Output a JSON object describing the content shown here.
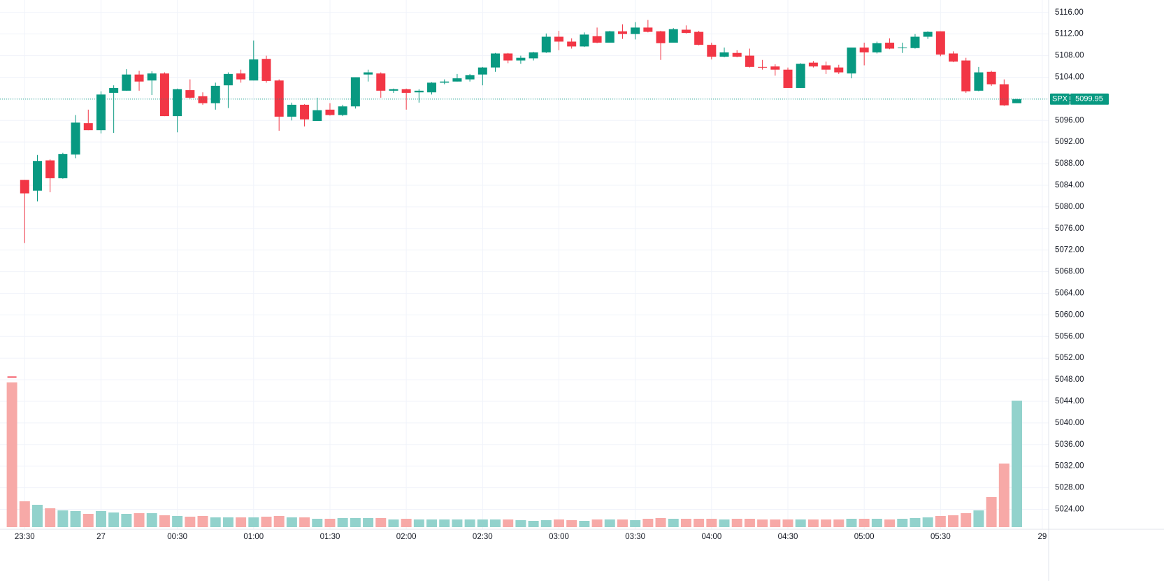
{
  "chart_data": {
    "type": "candlestick",
    "categories": [
      null,
      "23:30",
      null,
      null,
      null,
      null,
      null,
      "27",
      null,
      null,
      null,
      null,
      null,
      "00:30",
      null,
      null,
      null,
      null,
      null,
      "01:00",
      null,
      null,
      null,
      null,
      null,
      "01:30",
      null,
      null,
      null,
      null,
      null,
      "02:00",
      null,
      null,
      null,
      null,
      null,
      "02:30",
      null,
      null,
      null,
      null,
      null,
      "03:00",
      null,
      null,
      null,
      null,
      null,
      "03:30",
      null,
      null,
      null,
      null,
      null,
      "04:00",
      null,
      null,
      null,
      null,
      null,
      "04:30",
      null,
      null,
      null,
      null,
      null,
      "05:00",
      null,
      null,
      null,
      null,
      null,
      "05:30",
      null,
      null,
      null,
      null,
      null,
      null,
      null,
      "29"
    ],
    "open": [
      5048.6,
      5085.0,
      5083.0,
      5088.6,
      5085.3,
      5089.7,
      5095.5,
      5094.2,
      5101.1,
      5101.5,
      5104.5,
      5103.4,
      5104.7,
      5096.8,
      5101.6,
      5100.5,
      5099.2,
      5102.5,
      5104.7,
      5103.4,
      5107.4,
      5103.4,
      5096.7,
      5098.9,
      5095.9,
      5098.0,
      5097.0,
      5098.6,
      5104.5,
      5104.7,
      5101.5,
      5101.8,
      5101.2,
      5101.2,
      5103.0,
      5103.2,
      5103.6,
      5104.5,
      5105.8,
      5108.4,
      5107.1,
      5107.5,
      5108.6,
      5111.5,
      5110.6,
      5109.7,
      5111.6,
      5110.4,
      5112.5,
      5112.0,
      5113.2,
      5112.5,
      5110.4,
      5112.8,
      5112.4,
      5110.0,
      5107.8,
      5108.5,
      5108.0,
      5105.9,
      5106.0,
      5105.4,
      5102.0,
      5106.7,
      5106.2,
      5105.8,
      5104.7,
      5109.5,
      5108.6,
      5110.4,
      5109.4,
      5109.4,
      5111.5,
      5112.5,
      5108.4,
      5107.1,
      5101.5,
      5105.0,
      5102.7,
      5099.2,
      null,
      null
    ],
    "high": [
      5048.6,
      5085.0,
      5089.6,
      5088.8,
      5090.0,
      5097.0,
      5098.0,
      5101.4,
      5102.5,
      5105.5,
      5105.2,
      5105.1,
      5104.9,
      5101.9,
      5103.6,
      5101.2,
      5103.0,
      5104.9,
      5105.4,
      5110.8,
      5108.0,
      5103.6,
      5099.3,
      5099.0,
      5100.2,
      5099.2,
      5098.9,
      5104.0,
      5105.4,
      5104.9,
      5101.9,
      5101.9,
      5101.8,
      5103.1,
      5103.6,
      5104.6,
      5104.6,
      5105.9,
      5108.5,
      5108.5,
      5108.0,
      5108.7,
      5112.1,
      5112.6,
      5111.2,
      5112.3,
      5113.2,
      5112.6,
      5113.8,
      5114.2,
      5114.6,
      5112.6,
      5113.1,
      5113.6,
      5112.6,
      5110.4,
      5109.5,
      5109.0,
      5109.3,
      5107.2,
      5106.4,
      5105.8,
      5106.6,
      5107.0,
      5106.9,
      5106.3,
      5109.5,
      5110.4,
      5110.6,
      5111.2,
      5110.4,
      5112.0,
      5112.5,
      5112.5,
      5108.8,
      5107.6,
      5105.9,
      5105.2,
      5103.6,
      5100.0,
      null,
      null
    ],
    "low": [
      5048.4,
      5073.3,
      5081.0,
      5082.7,
      5085.2,
      5089.0,
      5094.2,
      5093.6,
      5093.7,
      5101.5,
      5101.5,
      5100.7,
      5096.8,
      5093.8,
      5100.0,
      5098.9,
      5098.0,
      5098.3,
      5103.0,
      5103.4,
      5103.0,
      5094.1,
      5096.0,
      5094.9,
      5095.9,
      5096.9,
      5096.8,
      5098.2,
      5103.2,
      5100.2,
      5101.1,
      5098.0,
      5099.3,
      5100.8,
      5102.7,
      5103.2,
      5103.2,
      5102.5,
      5105.0,
      5106.6,
      5106.5,
      5107.1,
      5108.5,
      5109.0,
      5109.3,
      5109.6,
      5110.3,
      5110.4,
      5111.1,
      5111.0,
      5112.3,
      5107.2,
      5110.4,
      5112.1,
      5109.9,
      5107.3,
      5107.7,
      5107.7,
      5105.8,
      5105.4,
      5104.3,
      5102.0,
      5102.0,
      5105.8,
      5104.6,
      5104.6,
      5103.8,
      5106.2,
      5108.4,
      5109.2,
      5108.5,
      5109.3,
      5111.1,
      5107.9,
      5106.8,
      5101.1,
      5101.4,
      5102.4,
      5098.7,
      5099.2,
      null,
      null
    ],
    "close": [
      5048.4,
      5082.5,
      5088.5,
      5085.3,
      5089.8,
      5095.6,
      5094.2,
      5100.8,
      5102.0,
      5104.5,
      5103.2,
      5104.7,
      5096.8,
      5101.8,
      5100.2,
      5099.2,
      5102.4,
      5104.6,
      5103.6,
      5107.3,
      5103.3,
      5096.7,
      5098.9,
      5096.2,
      5097.9,
      5097.0,
      5098.6,
      5104.0,
      5104.9,
      5101.5,
      5101.8,
      5101.1,
      5101.5,
      5103.0,
      5103.2,
      5103.8,
      5104.4,
      5105.8,
      5108.4,
      5107.1,
      5107.6,
      5108.6,
      5111.5,
      5110.6,
      5109.7,
      5111.9,
      5110.4,
      5112.5,
      5112.0,
      5113.2,
      5112.4,
      5110.3,
      5112.9,
      5112.2,
      5110.0,
      5107.8,
      5108.6,
      5107.8,
      5105.9,
      5105.8,
      5105.4,
      5102.0,
      5106.5,
      5106.0,
      5105.4,
      5104.9,
      5109.5,
      5108.6,
      5110.3,
      5109.3,
      5109.5,
      5111.5,
      5112.4,
      5108.2,
      5106.9,
      5101.4,
      5104.9,
      5102.7,
      5098.8,
      5099.95,
      null,
      null
    ],
    "volume": [
      207,
      37,
      32,
      27,
      24,
      23,
      19,
      23,
      21,
      19,
      20,
      20,
      17,
      16,
      15,
      16,
      14,
      14,
      14,
      14,
      15,
      16,
      14,
      14,
      12,
      12,
      13,
      13,
      13,
      13,
      11,
      12,
      11,
      11,
      11,
      11,
      11,
      11,
      11,
      11,
      10,
      9,
      10,
      11,
      10,
      9,
      11,
      11,
      11,
      10,
      12,
      13,
      12,
      12,
      12,
      12,
      11,
      12,
      12,
      11,
      11,
      11,
      11,
      11,
      11,
      11,
      12,
      12,
      12,
      11,
      12,
      13,
      14,
      16,
      17,
      20,
      24,
      43,
      91,
      181,
      null,
      null
    ],
    "up_color": "#089981",
    "down_color": "#f23645",
    "volume_up_color": "#92d2cc",
    "volume_down_color": "#f7a9a7",
    "ylim": [
      5020.7,
      5118.3
    ],
    "yticks": [
      {
        "value": 5024,
        "label": "5024.00"
      },
      {
        "value": 5028,
        "label": "5028.00"
      },
      {
        "value": 5032,
        "label": "5032.00"
      },
      {
        "value": 5036,
        "label": "5036.00"
      },
      {
        "value": 5040,
        "label": "5040.00"
      },
      {
        "value": 5044,
        "label": "5044.00"
      },
      {
        "value": 5048,
        "label": "5048.00"
      },
      {
        "value": 5052,
        "label": "5052.00"
      },
      {
        "value": 5056,
        "label": "5056.00"
      },
      {
        "value": 5060,
        "label": "5060.00"
      },
      {
        "value": 5064,
        "label": "5064.00"
      },
      {
        "value": 5068,
        "label": "5068.00"
      },
      {
        "value": 5072,
        "label": "5072.00"
      },
      {
        "value": 5076,
        "label": "5076.00"
      },
      {
        "value": 5080,
        "label": "5080.00"
      },
      {
        "value": 5084,
        "label": "5084.00"
      },
      {
        "value": 5088,
        "label": "5088.00"
      },
      {
        "value": 5092,
        "label": "5092.00"
      },
      {
        "value": 5096,
        "label": "5096.00"
      },
      {
        "value": 5100,
        "label": "5100.00"
      },
      {
        "value": 5104,
        "label": "5104.00"
      },
      {
        "value": 5108,
        "label": "5108.00"
      },
      {
        "value": 5112,
        "label": "5112.00"
      },
      {
        "value": 5116,
        "label": "5116.00"
      }
    ],
    "grid": true,
    "last_price": {
      "label": "SPX",
      "value": 5099.95
    }
  }
}
